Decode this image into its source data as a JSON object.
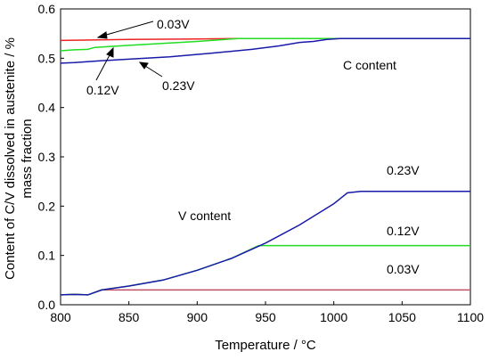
{
  "chart_data": {
    "type": "line",
    "xlabel": "Temperature / °C",
    "ylabel_line1": "Content of C/V dissolved in austenite / %",
    "ylabel_line2": "mass fraction",
    "xlim": [
      800,
      1100
    ],
    "ylim": [
      0,
      0.6
    ],
    "xticks": [
      "800",
      "850",
      "900",
      "950",
      "1000",
      "1050",
      "1100"
    ],
    "yticks": [
      "0.0",
      "0.1",
      "0.2",
      "0.3",
      "0.4",
      "0.5",
      "0.6"
    ],
    "grid": false,
    "colors": {
      "v003": "#ee2222",
      "v012": "#22dd22",
      "v023": "#1a1aaa",
      "v003_v": "#c0506a"
    },
    "series": [
      {
        "group": "C content",
        "label": "0.03V",
        "color_key": "v003",
        "points": [
          [
            800,
            0.536
          ],
          [
            850,
            0.538
          ],
          [
            900,
            0.539
          ],
          [
            930,
            0.54
          ],
          [
            1100,
            0.54
          ]
        ]
      },
      {
        "group": "C content",
        "label": "0.12V",
        "color_key": "v012",
        "points": [
          [
            800,
            0.515
          ],
          [
            810,
            0.517
          ],
          [
            820,
            0.518
          ],
          [
            825,
            0.522
          ],
          [
            850,
            0.526
          ],
          [
            900,
            0.534
          ],
          [
            930,
            0.54
          ],
          [
            1100,
            0.54
          ]
        ]
      },
      {
        "group": "C content",
        "label": "0.23V",
        "color_key": "v023",
        "points": [
          [
            800,
            0.49
          ],
          [
            810,
            0.491
          ],
          [
            830,
            0.495
          ],
          [
            850,
            0.498
          ],
          [
            880,
            0.503
          ],
          [
            910,
            0.51
          ],
          [
            940,
            0.518
          ],
          [
            960,
            0.525
          ],
          [
            975,
            0.532
          ],
          [
            985,
            0.534
          ],
          [
            995,
            0.538
          ],
          [
            1005,
            0.54
          ],
          [
            1100,
            0.54
          ]
        ]
      },
      {
        "group": "V content",
        "label": "0.03V",
        "color_key": "v003_v",
        "points": [
          [
            800,
            0.02
          ],
          [
            810,
            0.021
          ],
          [
            820,
            0.02
          ],
          [
            830,
            0.03
          ],
          [
            1100,
            0.03
          ]
        ]
      },
      {
        "group": "V content",
        "label": "0.12V",
        "color_key": "v012",
        "points": [
          [
            800,
            0.02
          ],
          [
            810,
            0.021
          ],
          [
            820,
            0.02
          ],
          [
            830,
            0.03
          ],
          [
            850,
            0.038
          ],
          [
            875,
            0.05
          ],
          [
            900,
            0.07
          ],
          [
            925,
            0.094
          ],
          [
            945,
            0.12
          ],
          [
            1100,
            0.12
          ]
        ]
      },
      {
        "group": "V content",
        "label": "0.23V",
        "color_key": "v023",
        "points": [
          [
            800,
            0.02
          ],
          [
            810,
            0.021
          ],
          [
            820,
            0.02
          ],
          [
            830,
            0.03
          ],
          [
            850,
            0.038
          ],
          [
            875,
            0.05
          ],
          [
            900,
            0.07
          ],
          [
            925,
            0.094
          ],
          [
            950,
            0.125
          ],
          [
            975,
            0.162
          ],
          [
            1000,
            0.205
          ],
          [
            1010,
            0.227
          ],
          [
            1020,
            0.23
          ],
          [
            1100,
            0.23
          ]
        ]
      }
    ],
    "annotations": {
      "c_content": "C content",
      "v_content": "V content",
      "c_003": "0.03V",
      "c_012": "0.12V",
      "c_023": "0.23V",
      "v_023": "0.23V",
      "v_012": "0.12V",
      "v_003": "0.03V"
    }
  }
}
